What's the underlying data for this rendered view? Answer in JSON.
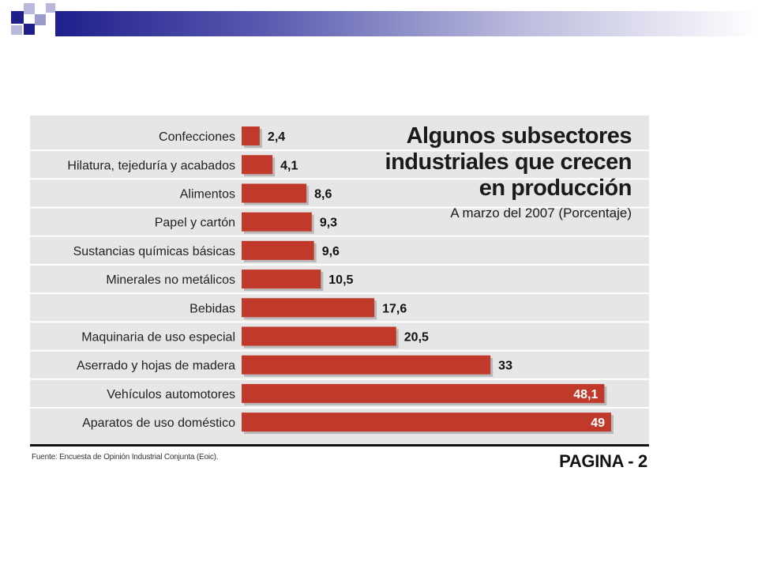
{
  "colors": {
    "bar": "#c0392b",
    "panel": "#e6e6e6",
    "slide_accent": "#1f1f8c"
  },
  "chart_data": {
    "type": "bar",
    "orientation": "horizontal",
    "title": "Algunos subsectores industriales que crecen en producción",
    "title_lines": [
      "Algunos subsectores",
      "industriales que crecen",
      "en producción"
    ],
    "subtitle": "A marzo del 2007 (Porcentaje)",
    "categories": [
      "Confecciones",
      "Hilatura, tejeduría y acabados",
      "Alimentos",
      "Papel y cartón",
      "Sustancias químicas básicas",
      "Minerales no metálicos",
      "Bebidas",
      "Maquinaria de uso especial",
      "Aserrado y hojas de madera",
      "Vehículos automotores",
      "Aparatos de uso doméstico"
    ],
    "values": [
      2.4,
      4.1,
      8.6,
      9.3,
      9.6,
      10.5,
      17.6,
      20.5,
      33,
      48.1,
      49
    ],
    "value_labels": [
      "2,4",
      "4,1",
      "8,6",
      "9,3",
      "9,6",
      "10,5",
      "17,6",
      "20,5",
      "33",
      "48,1",
      "49"
    ],
    "xlim": [
      0,
      49
    ],
    "xlabel": "",
    "ylabel": "",
    "grid": false,
    "source": "Fuente: Encuesta de Opinión Industrial Conjunta (Eoic).",
    "page_label": "PAGINA - 2"
  }
}
